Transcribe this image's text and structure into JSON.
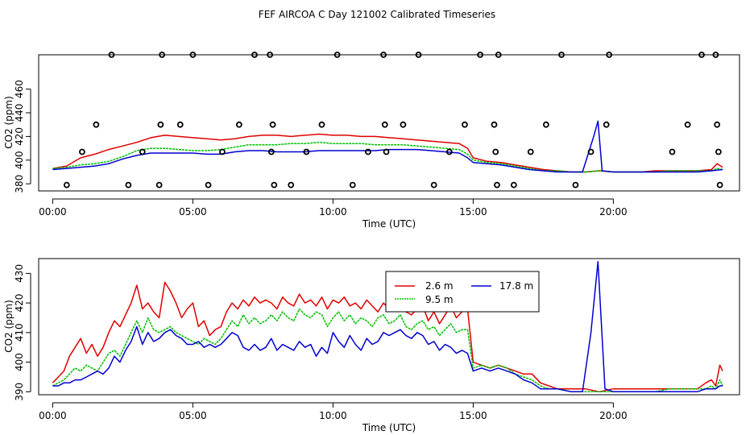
{
  "title": "FEF AIRCOA C  Day 121002  Calibrated Timeseries",
  "colors": {
    "red": "#e00000",
    "green": "#00c000",
    "blue": "#0000d0",
    "black": "#000000"
  },
  "chart_data": [
    {
      "type": "line",
      "xlabel": "Time (UTC)",
      "ylabel": "CO2 (ppm)",
      "xlim": [
        -0.5,
        24.5
      ],
      "ylim": [
        374,
        489
      ],
      "xticks": [
        0,
        5,
        10,
        15,
        20
      ],
      "xtick_labels": [
        "00:00",
        "05:00",
        "10:00",
        "15:00",
        "20:00"
      ],
      "yticks": [
        380,
        400,
        420,
        440,
        460
      ],
      "ytick_labels": [
        "380",
        "400",
        "420",
        "440",
        "460"
      ],
      "series": [
        {
          "name": "2.6 m",
          "color": "#e00000",
          "x": [
            0,
            0.5,
            1,
            1.5,
            2,
            2.5,
            3,
            3.5,
            4,
            4.5,
            5,
            5.5,
            6,
            6.5,
            7,
            7.5,
            8,
            8.5,
            9,
            9.5,
            10,
            10.5,
            11,
            11.5,
            12,
            12.5,
            13,
            13.5,
            14,
            14.5,
            14.8,
            15,
            15.5,
            16,
            16.5,
            17,
            17.5,
            18,
            18.5,
            19,
            19.5,
            20,
            20.5,
            21,
            21.5,
            22,
            22.5,
            23,
            23.5,
            23.7,
            23.9
          ],
          "y": [
            393,
            395,
            402,
            405,
            409,
            412,
            415,
            419,
            421,
            420,
            419,
            418,
            417,
            418,
            420,
            421,
            421,
            420,
            421,
            422,
            421,
            421,
            420,
            420,
            419,
            418,
            417,
            416,
            415,
            414,
            410,
            402,
            399,
            398,
            396,
            394,
            392,
            391,
            390,
            390,
            391,
            390,
            390,
            390,
            391,
            391,
            391,
            391,
            392,
            397,
            394
          ]
        },
        {
          "name": "9.5 m",
          "color": "#00c000",
          "x": [
            0,
            0.5,
            1,
            1.5,
            2,
            2.5,
            3,
            3.5,
            4,
            4.5,
            5,
            5.5,
            6,
            6.5,
            7,
            7.5,
            8,
            8.5,
            9,
            9.5,
            10,
            10.5,
            11,
            11.5,
            12,
            12.5,
            13,
            13.5,
            14,
            14.5,
            14.8,
            15,
            15.5,
            16,
            16.5,
            17,
            17.5,
            18,
            18.5,
            19,
            19.5,
            20,
            20.5,
            21,
            21.5,
            22,
            22.5,
            23,
            23.5,
            23.7,
            23.9
          ],
          "y": [
            393,
            394,
            396,
            397,
            399,
            403,
            408,
            410,
            410,
            409,
            408,
            408,
            409,
            411,
            413,
            413,
            413,
            414,
            414,
            415,
            414,
            414,
            414,
            413,
            413,
            413,
            412,
            411,
            410,
            409,
            405,
            400,
            398,
            397,
            395,
            393,
            391,
            391,
            390,
            390,
            391,
            390,
            390,
            390,
            390,
            391,
            391,
            391,
            391,
            393,
            392
          ]
        },
        {
          "name": "17.8 m",
          "color": "#0000d0",
          "x": [
            0,
            0.5,
            1,
            1.5,
            2,
            2.5,
            3,
            3.5,
            4,
            4.5,
            5,
            5.5,
            6,
            6.5,
            7,
            7.5,
            8,
            8.5,
            9,
            9.5,
            10,
            10.5,
            11,
            11.5,
            12,
            12.5,
            13,
            13.5,
            14,
            14.5,
            14.8,
            15,
            15.5,
            16,
            16.5,
            17,
            17.5,
            18,
            18.5,
            18.9,
            19.3,
            19.45,
            19.6,
            20,
            20.5,
            21,
            21.5,
            22,
            22.5,
            23,
            23.5,
            23.9
          ],
          "y": [
            392,
            393,
            394,
            395,
            397,
            401,
            404,
            406,
            406,
            406,
            406,
            405,
            405,
            407,
            408,
            408,
            407,
            407,
            407,
            408,
            408,
            408,
            408,
            408,
            409,
            409,
            409,
            408,
            407,
            406,
            402,
            398,
            397,
            396,
            394,
            392,
            391,
            390,
            390,
            390,
            420,
            433,
            391,
            390,
            390,
            390,
            390,
            390,
            390,
            390,
            391,
            392
          ]
        }
      ],
      "markers": {
        "shape": "circle-open",
        "x": [
          0.5,
          1.05,
          1.55,
          2.1,
          2.7,
          3.2,
          3.8,
          3.85,
          3.9,
          4.55,
          5.0,
          5.55,
          6.05,
          6.65,
          7.2,
          7.75,
          7.8,
          7.85,
          7.9,
          8.5,
          9.05,
          9.6,
          10.15,
          10.7,
          11.25,
          11.8,
          11.85,
          11.9,
          12.5,
          13.05,
          13.6,
          14.15,
          14.7,
          15.25,
          15.75,
          15.8,
          15.85,
          15.9,
          16.45,
          17.05,
          17.6,
          18.15,
          18.65,
          19.2,
          19.75,
          19.85,
          22.1,
          22.65,
          23.15,
          23.65,
          23.7,
          23.75,
          23.8
        ],
        "y": [
          379,
          407,
          430,
          489,
          379,
          407,
          379,
          430,
          489,
          430,
          489,
          379,
          407,
          430,
          489,
          489,
          407,
          430,
          379,
          379,
          407,
          430,
          489,
          379,
          407,
          489,
          430,
          407,
          430,
          489,
          379,
          407,
          430,
          489,
          430,
          407,
          379,
          489,
          379,
          407,
          430,
          489,
          379,
          407,
          430,
          489,
          407,
          430,
          489,
          489,
          430,
          407,
          379
        ]
      }
    },
    {
      "type": "line",
      "xlabel": "Time (UTC)",
      "ylabel": "CO2 (ppm)",
      "xlim": [
        -0.5,
        24.5
      ],
      "ylim": [
        389,
        435
      ],
      "xticks": [
        0,
        5,
        10,
        15,
        20
      ],
      "xtick_labels": [
        "00:00",
        "05:00",
        "10:00",
        "15:00",
        "20:00"
      ],
      "yticks": [
        390,
        400,
        410,
        420,
        430
      ],
      "ytick_labels": [
        "390",
        "400",
        "410",
        "420",
        "430"
      ],
      "legend": {
        "position": "top-center",
        "entries": [
          "2.6 m",
          "9.5 m",
          "17.8 m"
        ]
      },
      "series": [
        {
          "name": "2.6 m",
          "color": "#e00000",
          "x": [
            0,
            0.2,
            0.4,
            0.6,
            0.8,
            1.0,
            1.2,
            1.4,
            1.6,
            1.8,
            2.0,
            2.2,
            2.4,
            2.6,
            2.8,
            3.0,
            3.2,
            3.4,
            3.6,
            3.8,
            4.0,
            4.2,
            4.4,
            4.6,
            4.8,
            5.0,
            5.2,
            5.4,
            5.6,
            5.8,
            6.0,
            6.2,
            6.4,
            6.6,
            6.8,
            7.0,
            7.2,
            7.4,
            7.6,
            7.8,
            8.0,
            8.2,
            8.4,
            8.6,
            8.8,
            9.0,
            9.2,
            9.4,
            9.6,
            9.8,
            10.0,
            10.2,
            10.4,
            10.6,
            10.8,
            11.0,
            11.2,
            11.4,
            11.6,
            11.8,
            12.0,
            12.2,
            12.4,
            12.6,
            12.8,
            13.0,
            13.2,
            13.4,
            13.6,
            13.8,
            14.0,
            14.2,
            14.4,
            14.6,
            14.8,
            15.0,
            15.3,
            15.6,
            15.9,
            16.2,
            16.5,
            16.8,
            17.1,
            17.4,
            17.7,
            18.0,
            18.5,
            19.0,
            19.5,
            20.0,
            20.5,
            21.0,
            21.5,
            22.0,
            22.5,
            23.0,
            23.3,
            23.5,
            23.65,
            23.8,
            23.9
          ],
          "y": [
            393,
            395,
            397,
            402,
            405,
            408,
            403,
            406,
            402,
            405,
            410,
            414,
            412,
            416,
            420,
            426,
            418,
            420,
            417,
            415,
            427,
            424,
            420,
            415,
            418,
            420,
            412,
            414,
            409,
            411,
            412,
            417,
            420,
            418,
            421,
            419,
            422,
            420,
            421,
            420,
            418,
            422,
            420,
            419,
            423,
            420,
            421,
            419,
            422,
            418,
            421,
            420,
            422,
            419,
            420,
            418,
            421,
            419,
            417,
            420,
            418,
            420,
            422,
            417,
            416,
            418,
            419,
            414,
            417,
            413,
            416,
            419,
            415,
            417,
            418,
            400,
            399,
            398,
            399,
            398,
            397,
            396,
            396,
            393,
            392,
            391,
            391,
            391,
            390,
            391,
            391,
            391,
            391,
            391,
            391,
            391,
            393,
            394,
            392,
            399,
            397
          ]
        },
        {
          "name": "9.5 m",
          "color": "#00c000",
          "x": [
            0,
            0.2,
            0.4,
            0.6,
            0.8,
            1.0,
            1.2,
            1.4,
            1.6,
            1.8,
            2.0,
            2.2,
            2.4,
            2.6,
            2.8,
            3.0,
            3.2,
            3.4,
            3.6,
            3.8,
            4.0,
            4.2,
            4.4,
            4.6,
            4.8,
            5.0,
            5.2,
            5.4,
            5.6,
            5.8,
            6.0,
            6.2,
            6.4,
            6.6,
            6.8,
            7.0,
            7.2,
            7.4,
            7.6,
            7.8,
            8.0,
            8.2,
            8.4,
            8.6,
            8.8,
            9.0,
            9.2,
            9.4,
            9.6,
            9.8,
            10.0,
            10.2,
            10.4,
            10.6,
            10.8,
            11.0,
            11.2,
            11.4,
            11.6,
            11.8,
            12.0,
            12.2,
            12.4,
            12.6,
            12.8,
            13.0,
            13.2,
            13.4,
            13.6,
            13.8,
            14.0,
            14.2,
            14.4,
            14.6,
            14.8,
            15.0,
            15.3,
            15.6,
            15.9,
            16.2,
            16.5,
            16.8,
            17.1,
            17.4,
            17.7,
            18.0,
            18.5,
            19.0,
            19.5,
            20.0,
            20.5,
            21.0,
            21.5,
            22.0,
            22.5,
            23.0,
            23.3,
            23.5,
            23.65,
            23.8,
            23.9
          ],
          "y": [
            392,
            393,
            394,
            396,
            398,
            397,
            399,
            398,
            397,
            400,
            403,
            404,
            402,
            406,
            410,
            414,
            410,
            415,
            411,
            410,
            411,
            412,
            410,
            409,
            408,
            407,
            406,
            408,
            407,
            406,
            408,
            411,
            414,
            412,
            416,
            413,
            415,
            413,
            414,
            416,
            414,
            417,
            415,
            414,
            418,
            416,
            415,
            417,
            416,
            412,
            415,
            417,
            414,
            416,
            413,
            415,
            414,
            412,
            415,
            416,
            413,
            414,
            416,
            412,
            411,
            413,
            414,
            411,
            412,
            409,
            411,
            413,
            410,
            411,
            411,
            398,
            399,
            398,
            399,
            398,
            396,
            395,
            394,
            392,
            391,
            391,
            390,
            390,
            390,
            390,
            390,
            390,
            390,
            391,
            391,
            391,
            391,
            392,
            391,
            394,
            392
          ]
        },
        {
          "name": "17.8 m",
          "color": "#0000d0",
          "x": [
            0,
            0.2,
            0.4,
            0.6,
            0.8,
            1.0,
            1.2,
            1.4,
            1.6,
            1.8,
            2.0,
            2.2,
            2.4,
            2.6,
            2.8,
            3.0,
            3.2,
            3.4,
            3.6,
            3.8,
            4.0,
            4.2,
            4.4,
            4.6,
            4.8,
            5.0,
            5.2,
            5.4,
            5.6,
            5.8,
            6.0,
            6.2,
            6.4,
            6.6,
            6.8,
            7.0,
            7.2,
            7.4,
            7.6,
            7.8,
            8.0,
            8.2,
            8.4,
            8.6,
            8.8,
            9.0,
            9.2,
            9.4,
            9.6,
            9.8,
            10.0,
            10.2,
            10.4,
            10.6,
            10.8,
            11.0,
            11.2,
            11.4,
            11.6,
            11.8,
            12.0,
            12.2,
            12.4,
            12.6,
            12.8,
            13.0,
            13.2,
            13.4,
            13.6,
            13.8,
            14.0,
            14.2,
            14.4,
            14.6,
            14.8,
            15.0,
            15.3,
            15.6,
            15.9,
            16.2,
            16.5,
            16.8,
            17.1,
            17.4,
            17.7,
            18.0,
            18.5,
            18.9,
            19.2,
            19.45,
            19.7,
            20.0,
            20.5,
            21.0,
            21.5,
            22.0,
            22.5,
            23.0,
            23.3,
            23.5,
            23.65,
            23.8,
            23.9
          ],
          "y": [
            392,
            392,
            393,
            393,
            394,
            394,
            395,
            396,
            397,
            396,
            398,
            402,
            400,
            404,
            407,
            412,
            406,
            410,
            407,
            408,
            410,
            411,
            409,
            408,
            406,
            406,
            407,
            405,
            406,
            405,
            406,
            408,
            410,
            409,
            405,
            404,
            406,
            404,
            405,
            408,
            404,
            406,
            405,
            404,
            407,
            405,
            406,
            402,
            405,
            403,
            410,
            407,
            405,
            409,
            406,
            404,
            408,
            406,
            407,
            410,
            409,
            410,
            411,
            409,
            408,
            410,
            409,
            406,
            407,
            404,
            406,
            405,
            403,
            404,
            403,
            397,
            398,
            397,
            398,
            397,
            396,
            394,
            393,
            391,
            391,
            391,
            390,
            390,
            410,
            434,
            391,
            390,
            390,
            390,
            390,
            390,
            390,
            390,
            391,
            391,
            391,
            392,
            392
          ]
        }
      ]
    }
  ]
}
